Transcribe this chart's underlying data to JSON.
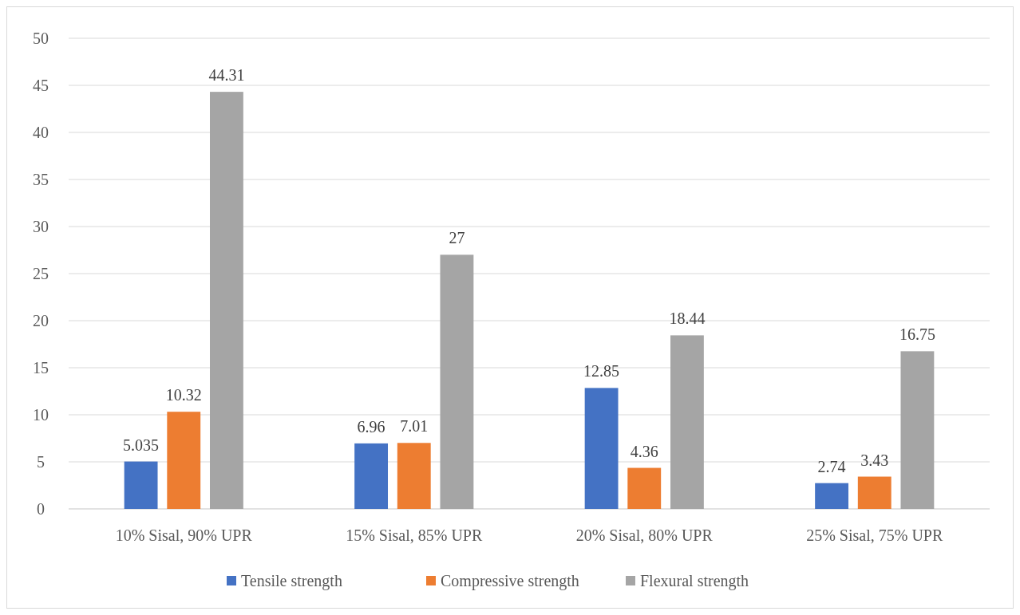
{
  "chart_data": {
    "type": "bar",
    "categories": [
      "10% Sisal, 90% UPR",
      "15% Sisal, 85% UPR",
      "20% Sisal, 80% UPR",
      "25% Sisal, 75% UPR"
    ],
    "series": [
      {
        "name": "Tensile strength",
        "color": "#4472c4",
        "values": [
          5.035,
          6.96,
          12.85,
          2.74
        ]
      },
      {
        "name": "Compressive strength",
        "color": "#ed7d31",
        "values": [
          10.32,
          7.01,
          4.36,
          3.43
        ]
      },
      {
        "name": "Flexural strength",
        "color": "#a5a5a5",
        "values": [
          44.31,
          27,
          18.44,
          16.75
        ]
      }
    ],
    "ylim": [
      0,
      50
    ],
    "yticks": [
      0,
      5,
      10,
      15,
      20,
      25,
      30,
      35,
      40,
      45,
      50
    ],
    "grid": "y",
    "legend": "bottom",
    "data_labels": true
  }
}
